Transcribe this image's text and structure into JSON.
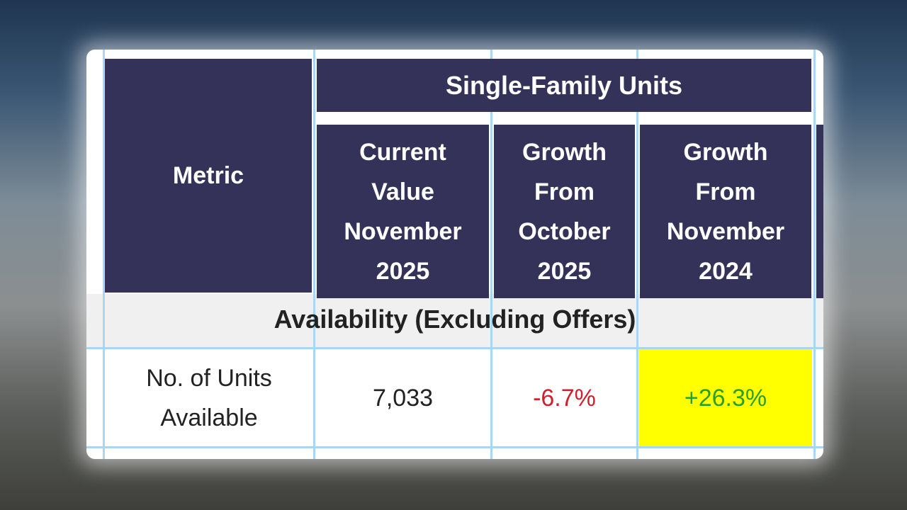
{
  "table": {
    "group_header": "Single-Family Units",
    "columns": [
      "Metric",
      "Current Value November 2025",
      "Growth From October 2025",
      "Growth From November 2024"
    ],
    "section": "Availability (Excluding Offers)",
    "rows": [
      [
        "No. of Units Available",
        "7,033",
        "-6.7%",
        "+26.3%"
      ]
    ]
  }
}
